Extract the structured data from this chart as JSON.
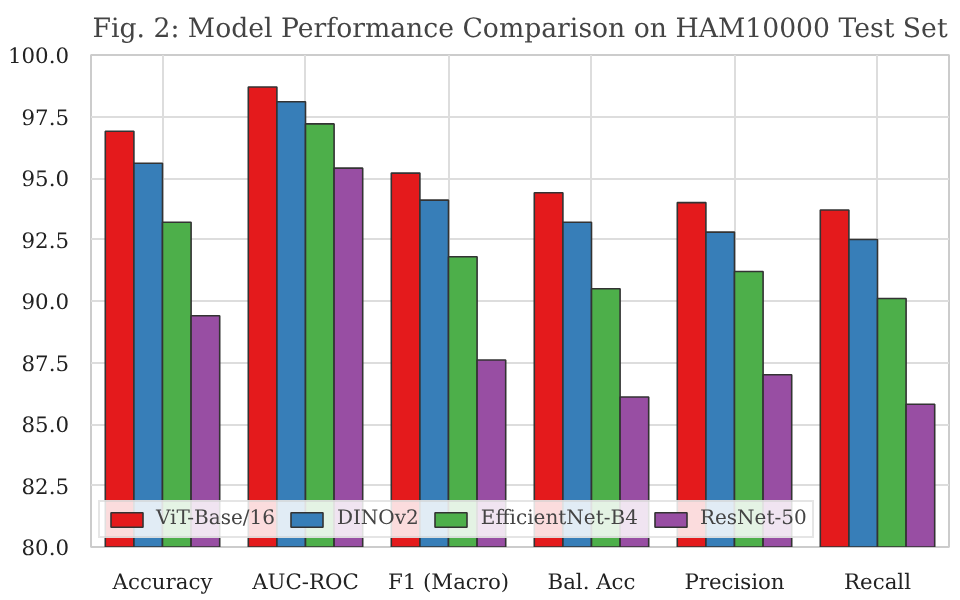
{
  "chart_data": {
    "type": "bar",
    "title": "Fig. 2: Model Performance Comparison on HAM10000 Test Set",
    "categories": [
      "Accuracy",
      "AUC-ROC",
      "F1 (Macro)",
      "Bal. Acc",
      "Precision",
      "Recall"
    ],
    "series": [
      {
        "name": "ViT-Base/16",
        "color": "#e41a1c",
        "values": [
          96.9,
          98.7,
          95.2,
          94.4,
          94.0,
          93.7
        ]
      },
      {
        "name": "DINOv2",
        "color": "#377eb8",
        "values": [
          95.6,
          98.1,
          94.1,
          93.2,
          92.8,
          92.5
        ]
      },
      {
        "name": "EfficientNet-B4",
        "color": "#4daf4a",
        "values": [
          93.2,
          97.2,
          91.8,
          90.5,
          91.2,
          90.1
        ]
      },
      {
        "name": "ResNet-50",
        "color": "#984ea3",
        "values": [
          89.4,
          95.4,
          87.6,
          86.1,
          87.0,
          85.8
        ]
      }
    ],
    "ylim": [
      80,
      100
    ],
    "yticks": [
      {
        "value": 80,
        "label": "80.0"
      },
      {
        "value": 82.5,
        "label": "82.5"
      },
      {
        "value": 85,
        "label": "85.0"
      },
      {
        "value": 87.5,
        "label": "87.5"
      },
      {
        "value": 90,
        "label": "90.0"
      },
      {
        "value": 92.5,
        "label": "92.5"
      },
      {
        "value": 95,
        "label": "95.0"
      },
      {
        "value": 97.5,
        "label": "97.5"
      },
      {
        "value": 100,
        "label": "100.0"
      }
    ],
    "grid": true,
    "legend": "bottom left"
  }
}
